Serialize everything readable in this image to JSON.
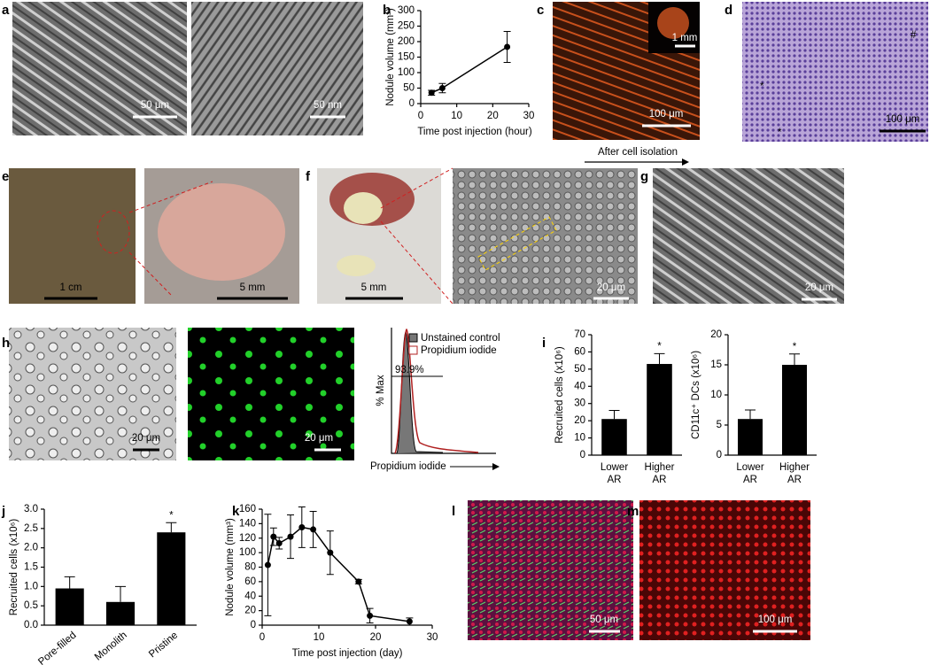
{
  "panel_labels": [
    "a",
    "b",
    "c",
    "d",
    "e",
    "f",
    "g",
    "h",
    "i",
    "j",
    "k",
    "l",
    "m"
  ],
  "scale_bars": [
    "50 μm",
    "50 nm",
    "100 μm",
    "1 mm",
    "100 μm",
    "1 cm",
    "5 mm",
    "5 mm",
    "20 μm",
    "20 μm",
    "20 μm",
    "20 μm",
    "50 μm",
    "100 μm"
  ],
  "markers": [
    "*",
    "*",
    "#"
  ],
  "arrow_label": "After cell isolation",
  "histogram": {
    "legend": [
      "Unstained control",
      "Propidium iodide"
    ],
    "annotation": "93.9%",
    "ylabel": "% Max",
    "xlabel": "Propidium iodide"
  },
  "chart_data": [
    {
      "type": "line",
      "xlabel": "Time post injection (hour)",
      "ylabel": "Nodule volume (mm³)",
      "x": [
        3,
        6,
        24
      ],
      "values": [
        35,
        50,
        183
      ],
      "errors": [
        8,
        15,
        50
      ],
      "color": "#000",
      "xlim": [
        0,
        30
      ],
      "xticks": [
        0,
        10,
        20,
        30
      ],
      "ylim": [
        0,
        300
      ],
      "yticks": [
        0,
        50,
        100,
        150,
        200,
        250,
        300
      ]
    },
    {
      "type": "bar",
      "ylabel": "Recruited cells (x10⁶)",
      "categories": [
        "Lower AR",
        "Higher AR"
      ],
      "values": [
        21,
        53
      ],
      "errors": [
        5,
        6
      ],
      "significance": [
        null,
        "*"
      ],
      "color": "#000",
      "ylim": [
        0,
        70
      ],
      "yticks": [
        0,
        10,
        20,
        30,
        40,
        50,
        60,
        70
      ]
    },
    {
      "type": "bar",
      "ylabel": "CD11c⁺ DCs (x10⁶)",
      "categories": [
        "Lower AR",
        "Higher AR"
      ],
      "values": [
        6,
        15
      ],
      "errors": [
        1.5,
        1.8
      ],
      "significance": [
        null,
        "*"
      ],
      "color": "#000",
      "ylim": [
        0,
        20
      ],
      "yticks": [
        0,
        5,
        10,
        15,
        20
      ]
    },
    {
      "type": "bar",
      "ylabel": "Recruited cells (x10⁶)",
      "categories": [
        "Pore-filled",
        "Monolith",
        "Pristine"
      ],
      "values": [
        0.95,
        0.6,
        2.4
      ],
      "errors": [
        0.3,
        0.4,
        0.25
      ],
      "significance": [
        null,
        null,
        "*"
      ],
      "color": "#000",
      "ylim": [
        0,
        3
      ],
      "yticks": [
        {
          "value": 0,
          "label": "0.0"
        },
        0.5,
        {
          "value": 1,
          "label": "1.0"
        },
        1.5,
        {
          "value": 2,
          "label": "2.0"
        },
        2.5,
        {
          "value": 3,
          "label": "3.0"
        }
      ]
    },
    {
      "type": "line",
      "xlabel": "Time post injection (day)",
      "ylabel": "Nodule volume (mm³)",
      "x": [
        1,
        2,
        3,
        5,
        7,
        9,
        12,
        17,
        19,
        26
      ],
      "values": [
        83,
        122,
        113,
        122,
        135,
        132,
        100,
        60,
        13,
        5
      ],
      "errors": [
        70,
        12,
        8,
        30,
        28,
        25,
        30,
        3,
        10,
        5
      ],
      "color": "#000",
      "xlim": [
        0,
        30
      ],
      "xticks": [
        0,
        10,
        20,
        30
      ],
      "ylim": [
        0,
        160
      ],
      "yticks": [
        0,
        20,
        40,
        60,
        80,
        100,
        120,
        140,
        160
      ]
    }
  ]
}
